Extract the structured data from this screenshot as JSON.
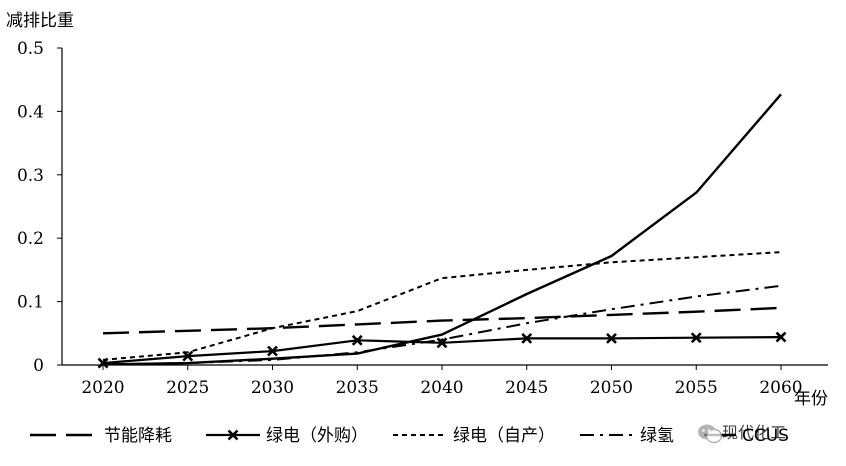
{
  "chart_data": {
    "type": "line",
    "ylabel": "减排比重",
    "xlabel": "年份",
    "ylim": [
      0,
      0.5
    ],
    "yticks": [
      "0",
      "0.1",
      "0.2",
      "0.3",
      "0.4",
      "0.5"
    ],
    "categories": [
      "2020",
      "2025",
      "2030",
      "2035",
      "2040",
      "2045",
      "2050",
      "2055",
      "2060"
    ],
    "grid": false,
    "legend_position": "bottom",
    "series": [
      {
        "name": "节能降耗",
        "style": "long-dash",
        "color": "#000000",
        "values": [
          0.05,
          0.054,
          0.058,
          0.064,
          0.07,
          0.074,
          0.079,
          0.084,
          0.09
        ]
      },
      {
        "name": "绿电（外购）",
        "style": "solid-x",
        "color": "#000000",
        "values": [
          0.003,
          0.014,
          0.022,
          0.039,
          0.035,
          0.042,
          0.042,
          0.043,
          0.044
        ]
      },
      {
        "name": "绿电（自产）",
        "style": "short-dash",
        "color": "#000000",
        "values": [
          0.008,
          0.02,
          0.058,
          0.085,
          0.137,
          0.15,
          0.162,
          0.17,
          0.178
        ]
      },
      {
        "name": "绿氢",
        "style": "dash-dot",
        "color": "#000000",
        "values": [
          0.001,
          0.003,
          0.008,
          0.02,
          0.04,
          0.066,
          0.088,
          0.108,
          0.125
        ]
      },
      {
        "name": "CCUS",
        "style": "solid",
        "color": "#000000",
        "values": [
          0.001,
          0.003,
          0.01,
          0.018,
          0.048,
          0.112,
          0.172,
          0.272,
          0.427
        ]
      }
    ]
  },
  "watermark": {
    "text": "现代化工",
    "icon": "wechat-icon"
  }
}
